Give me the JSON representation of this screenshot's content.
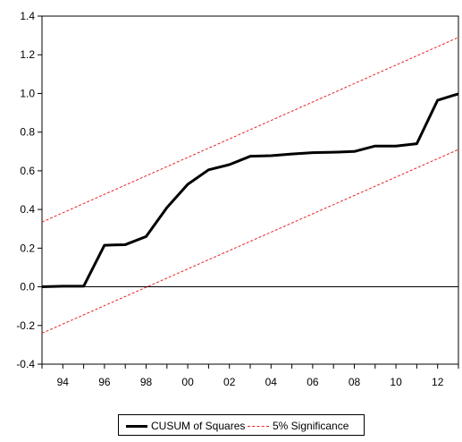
{
  "chart_data": {
    "type": "line",
    "title": "",
    "xlabel": "",
    "ylabel": "",
    "xlim": [
      1993,
      2013
    ],
    "ylim": [
      -0.4,
      1.4
    ],
    "yticks": [
      -0.4,
      -0.2,
      0.0,
      0.2,
      0.4,
      0.6,
      0.8,
      1.0,
      1.2,
      1.4
    ],
    "ytick_labels": [
      "-0.4",
      "-0.2",
      "0.0",
      "0.2",
      "0.4",
      "0.6",
      "0.8",
      "1.0",
      "1.2",
      "1.4"
    ],
    "xticks": [
      1994,
      1996,
      1998,
      2000,
      2002,
      2004,
      2006,
      2008,
      2010,
      2012
    ],
    "xtick_labels": [
      "94",
      "96",
      "98",
      "00",
      "02",
      "04",
      "06",
      "08",
      "10",
      "12"
    ],
    "zero_line": true,
    "grid": false,
    "legend_position": "bottom-center",
    "series": [
      {
        "name": "CUSUM of Squares",
        "color": "#000000",
        "style": "solid",
        "x": [
          1993,
          1994,
          1995,
          1996,
          1997,
          1998,
          1999,
          2000,
          2001,
          2002,
          2003,
          2004,
          2005,
          2006,
          2007,
          2008,
          2009,
          2010,
          2011,
          2012,
          2013
        ],
        "y": [
          0.0,
          0.003,
          0.003,
          0.215,
          0.218,
          0.26,
          0.41,
          0.53,
          0.605,
          0.632,
          0.675,
          0.678,
          0.687,
          0.694,
          0.696,
          0.7,
          0.728,
          0.728,
          0.74,
          0.965,
          0.998
        ]
      },
      {
        "name": "5% Significance",
        "color": "#e8232a",
        "style": "dashed",
        "x": [
          1993,
          2013
        ],
        "y": [
          0.335,
          1.29
        ]
      },
      {
        "name": "5% Significance",
        "color": "#e8232a",
        "style": "dashed",
        "x": [
          1993,
          2013
        ],
        "y": [
          -0.24,
          0.71
        ]
      }
    ]
  },
  "legend": {
    "items": [
      {
        "label": "CUSUM of Squares"
      },
      {
        "label": "5% Significance"
      }
    ]
  }
}
